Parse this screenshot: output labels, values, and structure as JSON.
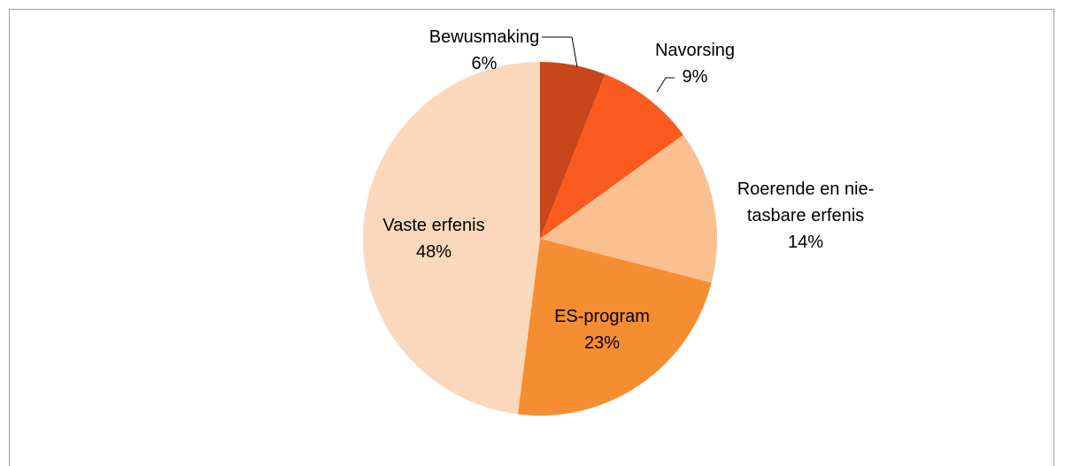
{
  "chart_data": {
    "type": "pie",
    "categories": [
      "Bewusmaking",
      "Navorsing",
      "Roerende en nie-tasbare erfenis",
      "ES-program",
      "Vaste erfenis"
    ],
    "values": [
      6,
      9,
      14,
      23,
      48
    ],
    "value_labels": [
      "6%",
      "9%",
      "14%",
      "23%",
      "48%"
    ],
    "colors": [
      "#c8461a",
      "#fa5a1e",
      "#fbbf90",
      "#f58d32",
      "#fbd8bb"
    ]
  }
}
